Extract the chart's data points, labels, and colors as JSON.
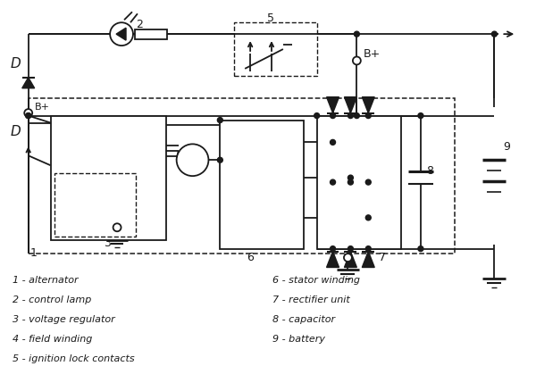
{
  "background_color": "#ffffff",
  "line_color": "#1a1a1a",
  "legend_left": [
    "1 - alternator",
    "2 - control lamp",
    "3 - voltage regulator",
    "4 - field winding",
    "5 - ignition lock contacts"
  ],
  "legend_right": [
    "6 - stator winding",
    "7 - rectifier unit",
    "8 - capacitor",
    "9 - battery"
  ],
  "fig_width": 6.0,
  "fig_height": 4.39,
  "dpi": 100
}
